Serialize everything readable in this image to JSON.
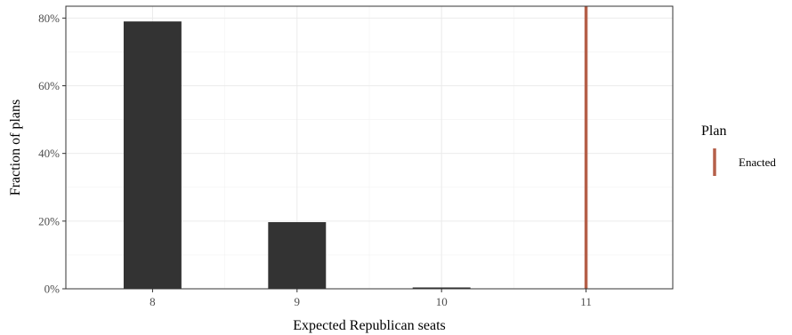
{
  "chart_data": {
    "type": "bar",
    "title": "",
    "xlabel": "Expected Republican seats",
    "ylabel": "Fraction of plans",
    "x_ticks": [
      "8",
      "9",
      "10",
      "11"
    ],
    "x_range": [
      7.4,
      11.6
    ],
    "y_ticks": [
      "0%",
      "20%",
      "40%",
      "60%",
      "80%"
    ],
    "ylim": [
      0,
      0.835
    ],
    "grid": true,
    "bars": [
      {
        "x": 8,
        "value": 0.79
      },
      {
        "x": 9,
        "value": 0.197
      },
      {
        "x": 10,
        "value": 0.004
      }
    ],
    "bar_width": 0.4,
    "bar_color": "#333333",
    "reference_line": {
      "x": 11,
      "label": "Enacted",
      "color": "#b5604a"
    },
    "legend": {
      "title": "Plan",
      "placement": "right",
      "entries": [
        "Enacted"
      ]
    }
  }
}
